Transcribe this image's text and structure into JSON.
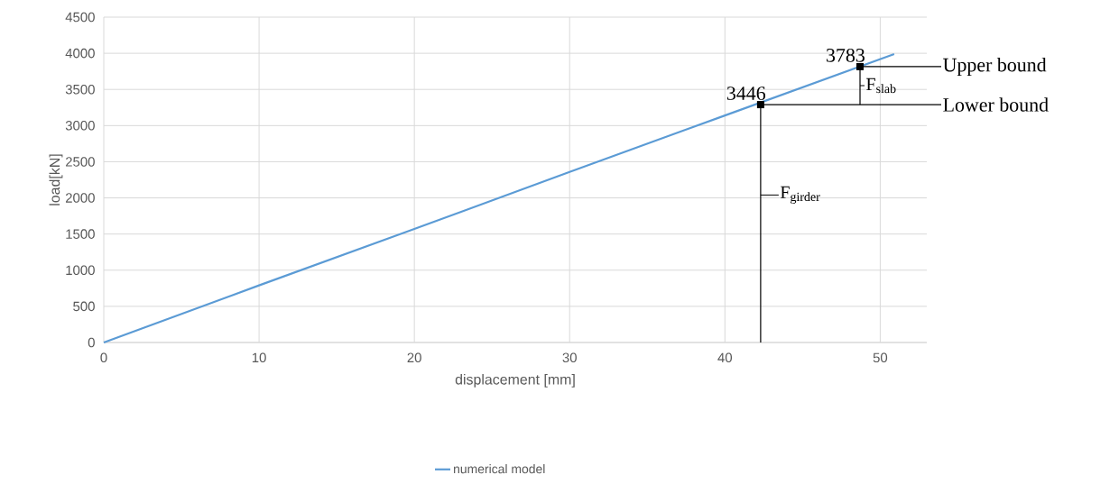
{
  "chart_data": {
    "type": "line",
    "xlabel": "displacement [mm]",
    "ylabel": "load[kN]",
    "series": [
      {
        "name": "numerical model",
        "color": "#5b9bd5",
        "x": [
          0,
          10,
          20,
          30,
          40,
          50.9
        ],
        "values": [
          0,
          790,
          1570,
          2360,
          3140,
          3990
        ]
      }
    ],
    "xlim": [
      0,
      53
    ],
    "xticks": [
      0,
      10,
      20,
      30,
      40,
      50
    ],
    "ylim": [
      0,
      4500
    ],
    "yticks": [
      0,
      500,
      1000,
      1500,
      2000,
      2500,
      3000,
      3500,
      4000,
      4500
    ],
    "grid": true,
    "legend": "bottom",
    "annotations": [
      {
        "text": "3446",
        "x": 42.3,
        "y": 3290
      },
      {
        "text": "3783",
        "x": 48.7,
        "y": 3815
      },
      "F$_{slab}$"
    ],
    "ref_lines": [
      {
        "axis": "y",
        "value": 3815,
        "label": "Upper bound"
      },
      {
        "axis": "y",
        "value": 3290,
        "label": "Lower bound"
      },
      {
        "axis": "x",
        "value": 42.3,
        "label": "F$_{girder}$"
      }
    ]
  }
}
